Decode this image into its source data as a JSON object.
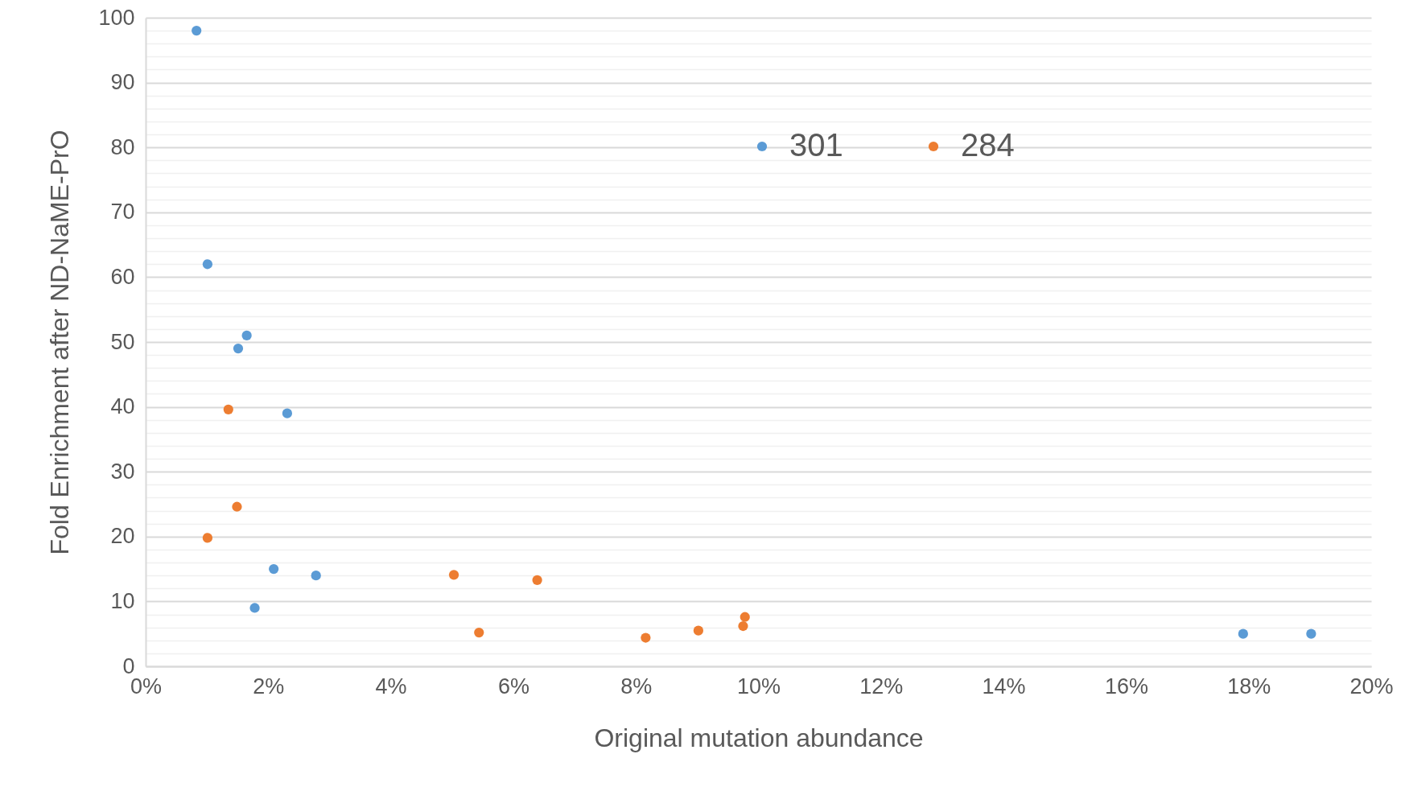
{
  "chart_data": {
    "type": "scatter",
    "xlabel": "Original mutation abundance",
    "ylabel": "Fold Enrichment after ND-NaME-PrO",
    "xlim": [
      0,
      20
    ],
    "xticks": [
      {
        "value": 0,
        "label": "0%"
      },
      {
        "value": 2,
        "label": "2%"
      },
      {
        "value": 4,
        "label": "4%"
      },
      {
        "value": 6,
        "label": "6%"
      },
      {
        "value": 8,
        "label": "8%"
      },
      {
        "value": 10,
        "label": "10%"
      },
      {
        "value": 12,
        "label": "12%"
      },
      {
        "value": 14,
        "label": "14%"
      },
      {
        "value": 16,
        "label": "16%"
      },
      {
        "value": 18,
        "label": "18%"
      },
      {
        "value": 20,
        "label": "20%"
      }
    ],
    "ylim": [
      0,
      100
    ],
    "yticks": [
      0,
      {
        "value": 2,
        "label": null
      },
      {
        "value": 4,
        "label": null
      },
      {
        "value": 6,
        "label": null
      },
      {
        "value": 8,
        "label": null
      },
      10,
      {
        "value": 12,
        "label": null
      },
      {
        "value": 14,
        "label": null
      },
      {
        "value": 16,
        "label": null
      },
      {
        "value": 18,
        "label": null
      },
      20,
      {
        "value": 22,
        "label": null
      },
      {
        "value": 24,
        "label": null
      },
      {
        "value": 26,
        "label": null
      },
      {
        "value": 28,
        "label": null
      },
      30,
      {
        "value": 32,
        "label": null
      },
      {
        "value": 34,
        "label": null
      },
      {
        "value": 36,
        "label": null
      },
      {
        "value": 38,
        "label": null
      },
      40,
      {
        "value": 42,
        "label": null
      },
      {
        "value": 44,
        "label": null
      },
      {
        "value": 46,
        "label": null
      },
      {
        "value": 48,
        "label": null
      },
      50,
      {
        "value": 52,
        "label": null
      },
      {
        "value": 54,
        "label": null
      },
      {
        "value": 56,
        "label": null
      },
      {
        "value": 58,
        "label": null
      },
      60,
      {
        "value": 62,
        "label": null
      },
      {
        "value": 64,
        "label": null
      },
      {
        "value": 66,
        "label": null
      },
      {
        "value": 68,
        "label": null
      },
      70,
      {
        "value": 72,
        "label": null
      },
      {
        "value": 74,
        "label": null
      },
      {
        "value": 76,
        "label": null
      },
      {
        "value": 78,
        "label": null
      },
      80,
      {
        "value": 82,
        "label": null
      },
      {
        "value": 84,
        "label": null
      },
      {
        "value": 86,
        "label": null
      },
      {
        "value": 88,
        "label": null
      },
      90,
      {
        "value": 92,
        "label": null
      },
      {
        "value": 94,
        "label": null
      },
      {
        "value": 96,
        "label": null
      },
      {
        "value": 98,
        "label": null
      },
      100
    ],
    "grid": "y",
    "legend": "top",
    "marker": "circle",
    "series": [
      {
        "name": "301",
        "color": "#5b9bd5",
        "x": [
          0.83,
          1.01,
          1.65,
          1.51,
          2.31,
          2.09,
          2.78,
          1.78,
          17.91,
          19.02
        ],
        "values": [
          98,
          62,
          51,
          49,
          39,
          15,
          14,
          9,
          5,
          5
        ]
      },
      {
        "name": "284",
        "color": "#ed7d31",
        "x": [
          1.35,
          1.49,
          1.01,
          5.03,
          6.39,
          5.44,
          8.16,
          9.02,
          9.75,
          9.78
        ],
        "values": [
          39.6,
          24.6,
          19.8,
          14.1,
          13.3,
          5.2,
          4.4,
          5.5,
          6.2,
          7.6
        ]
      }
    ]
  }
}
